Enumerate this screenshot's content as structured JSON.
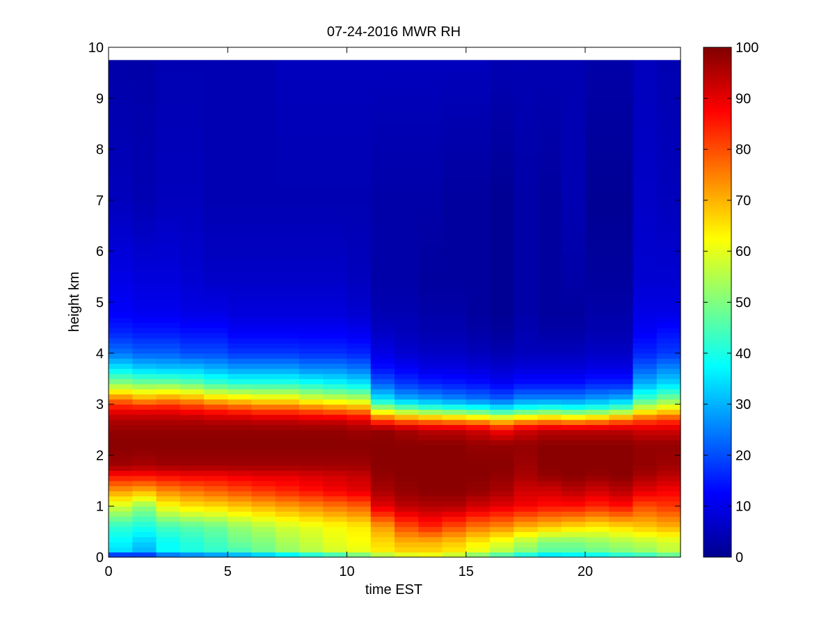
{
  "chart_data": {
    "type": "heatmap",
    "title": "07-24-2016 MWR RH",
    "xlabel": "time EST",
    "ylabel": "height km",
    "xlim": [
      0,
      24
    ],
    "ylim": [
      0,
      10
    ],
    "x_ticks": [
      "0",
      "5",
      "10",
      "15",
      "20"
    ],
    "y_ticks": [
      "0",
      "1",
      "2",
      "3",
      "4",
      "5",
      "6",
      "7",
      "8",
      "9",
      "10"
    ],
    "colorbar": {
      "colormap": "jet",
      "range": [
        0,
        100
      ],
      "ticks": [
        "0",
        "10",
        "20",
        "30",
        "40",
        "50",
        "60",
        "70",
        "80",
        "90",
        "100"
      ]
    },
    "grid": false,
    "time_bin_hours": 1,
    "height_top_km": 9.75,
    "times": [
      0,
      1,
      2,
      3,
      4,
      5,
      6,
      7,
      8,
      9,
      10,
      11,
      12,
      13,
      14,
      15,
      16,
      17,
      18,
      19,
      20,
      21,
      22,
      23
    ],
    "profiles": {
      "heights_km": [
        0.0,
        0.1,
        0.3,
        0.6,
        1.0,
        1.3,
        1.6,
        1.8,
        2.2,
        2.5,
        2.7,
        2.9,
        3.1,
        3.4,
        3.7,
        4.0,
        4.4,
        4.8,
        5.5,
        7.0,
        9.75
      ],
      "rh": [
        [
          4,
          34,
          37,
          42,
          58,
          72,
          86,
          97,
          99,
          98,
          95,
          88,
          76,
          52,
          36,
          24,
          16,
          12,
          10,
          6,
          4
        ],
        [
          8,
          30,
          33,
          40,
          52,
          70,
          86,
          96,
          99,
          98,
          95,
          88,
          72,
          50,
          33,
          22,
          15,
          11,
          9,
          5,
          4
        ],
        [
          12,
          38,
          38,
          44,
          62,
          74,
          87,
          97,
          99,
          98,
          95,
          88,
          74,
          50,
          32,
          22,
          15,
          11,
          9,
          6,
          5
        ],
        [
          14,
          40,
          41,
          46,
          65,
          76,
          88,
          97,
          99,
          98,
          95,
          86,
          72,
          48,
          32,
          20,
          14,
          10,
          8,
          6,
          5
        ],
        [
          16,
          42,
          44,
          48,
          66,
          78,
          88,
          97,
          99,
          98,
          94,
          84,
          68,
          44,
          30,
          20,
          14,
          10,
          7,
          5,
          5
        ],
        [
          18,
          44,
          48,
          52,
          68,
          80,
          89,
          97,
          99,
          98,
          94,
          82,
          66,
          42,
          28,
          18,
          12,
          9,
          7,
          5,
          5
        ],
        [
          20,
          48,
          50,
          55,
          70,
          82,
          90,
          97,
          99,
          98,
          93,
          80,
          64,
          42,
          28,
          18,
          12,
          9,
          7,
          5,
          5
        ],
        [
          22,
          52,
          54,
          58,
          72,
          84,
          90,
          97,
          99,
          98,
          93,
          80,
          64,
          42,
          28,
          18,
          12,
          9,
          7,
          5,
          6
        ],
        [
          28,
          55,
          57,
          60,
          74,
          86,
          91,
          97,
          99,
          98,
          92,
          78,
          60,
          40,
          26,
          17,
          12,
          9,
          7,
          5,
          6
        ],
        [
          32,
          58,
          60,
          62,
          76,
          88,
          92,
          97,
          99,
          98,
          92,
          76,
          58,
          38,
          26,
          17,
          12,
          9,
          7,
          5,
          6
        ],
        [
          40,
          60,
          62,
          64,
          78,
          90,
          93,
          97,
          99,
          97,
          90,
          74,
          56,
          36,
          24,
          16,
          11,
          8,
          6,
          5,
          6
        ],
        [
          48,
          64,
          66,
          72,
          90,
          96,
          98,
          99,
          99,
          98,
          80,
          56,
          36,
          22,
          14,
          10,
          7,
          5,
          4,
          4,
          6
        ],
        [
          54,
          66,
          70,
          80,
          94,
          98,
          99,
          99,
          99,
          96,
          76,
          50,
          30,
          18,
          12,
          8,
          6,
          5,
          4,
          4,
          6
        ],
        [
          56,
          66,
          70,
          84,
          95,
          99,
          99,
          99,
          99,
          94,
          74,
          46,
          28,
          16,
          10,
          7,
          5,
          4,
          3,
          4,
          6
        ],
        [
          52,
          64,
          68,
          80,
          95,
          99,
          99,
          99,
          99,
          94,
          72,
          44,
          26,
          15,
          10,
          7,
          5,
          4,
          3,
          3,
          6
        ],
        [
          44,
          60,
          64,
          76,
          92,
          98,
          99,
          99,
          98,
          92,
          70,
          42,
          24,
          14,
          9,
          6,
          4,
          3,
          3,
          3,
          6
        ],
        [
          38,
          55,
          60,
          74,
          90,
          96,
          98,
          99,
          98,
          88,
          66,
          38,
          22,
          12,
          8,
          5,
          3,
          2,
          2,
          2,
          5
        ],
        [
          32,
          50,
          55,
          70,
          88,
          92,
          96,
          97,
          98,
          92,
          70,
          42,
          26,
          14,
          9,
          6,
          5,
          4,
          4,
          4,
          5
        ],
        [
          26,
          46,
          50,
          68,
          86,
          92,
          98,
          99,
          99,
          94,
          72,
          44,
          26,
          14,
          9,
          6,
          4,
          3,
          3,
          3,
          5
        ],
        [
          28,
          46,
          50,
          66,
          86,
          94,
          99,
          99,
          99,
          94,
          70,
          42,
          26,
          14,
          9,
          6,
          4,
          3,
          4,
          5,
          5
        ],
        [
          30,
          48,
          52,
          64,
          84,
          92,
          98,
          99,
          99,
          94,
          72,
          44,
          28,
          16,
          10,
          7,
          5,
          4,
          3,
          2,
          4
        ],
        [
          34,
          50,
          54,
          66,
          86,
          94,
          99,
          99,
          99,
          94,
          76,
          48,
          30,
          16,
          10,
          7,
          5,
          4,
          3,
          2,
          4
        ],
        [
          36,
          52,
          56,
          68,
          80,
          90,
          96,
          98,
          98,
          92,
          80,
          60,
          44,
          30,
          22,
          16,
          12,
          10,
          8,
          7,
          6
        ],
        [
          40,
          56,
          58,
          70,
          82,
          88,
          94,
          97,
          98,
          92,
          82,
          64,
          50,
          34,
          26,
          18,
          14,
          10,
          8,
          6,
          5
        ]
      ]
    }
  }
}
